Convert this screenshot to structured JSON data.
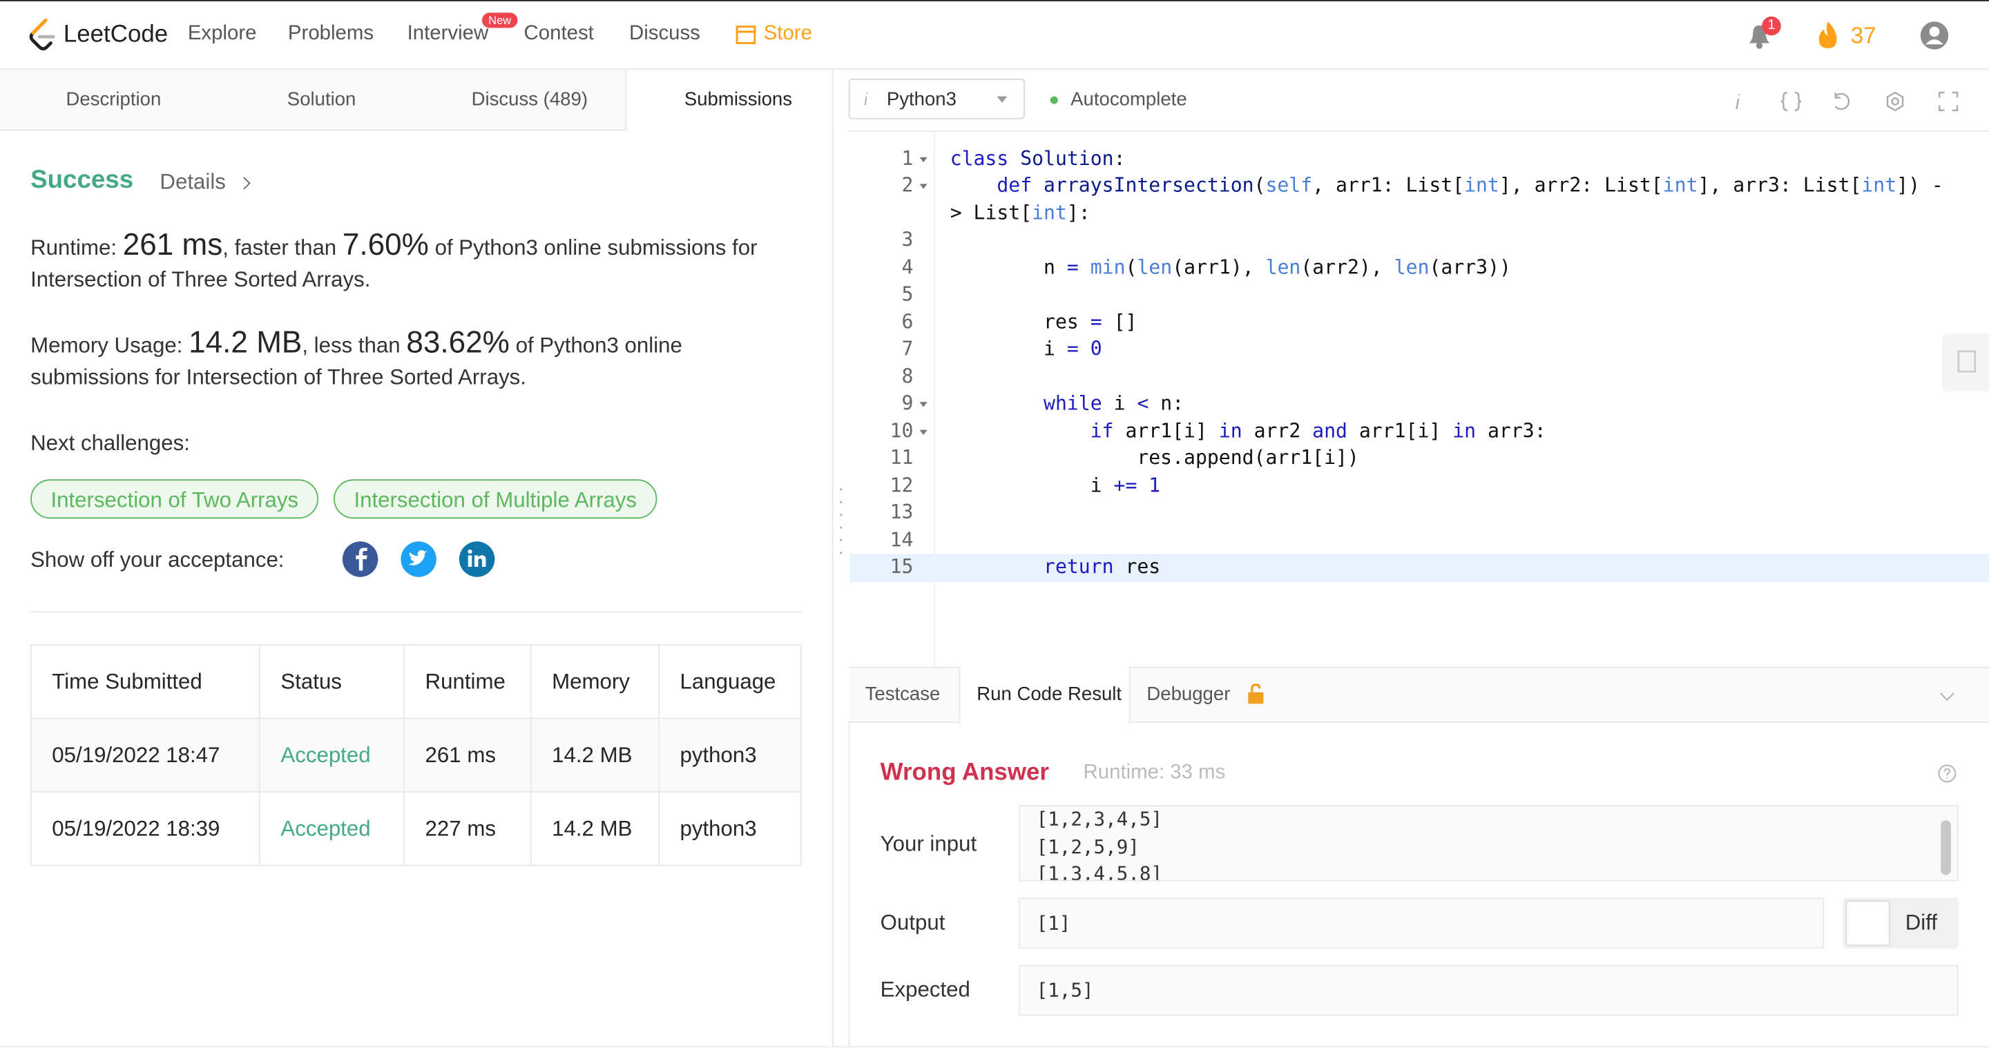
{
  "nav": {
    "logo": "LeetCode",
    "items": [
      "Explore",
      "Problems",
      "Interview",
      "Contest",
      "Discuss"
    ],
    "badge": "New",
    "store": "Store",
    "notifications": 1,
    "streak": 37
  },
  "tabs": [
    "Description",
    "Solution",
    "Discuss (489)",
    "Submissions"
  ],
  "result": {
    "status": "Success",
    "details": "Details",
    "runtime": {
      "label": "Runtime:",
      "value": "261 ms",
      "middle": ", faster than",
      "percent": "7.60%",
      "tail": "of Python3 online submissions for Intersection of Three Sorted Arrays."
    },
    "memory": {
      "label": "Memory Usage:",
      "value": "14.2 MB",
      "middle": ", less than",
      "percent": "83.62%",
      "tail": "of Python3 online submissions for Intersection of Three Sorted Arrays."
    }
  },
  "next_challenges": {
    "label": "Next challenges:",
    "items": [
      "Intersection of Two Arrays",
      "Intersection of Multiple Arrays"
    ]
  },
  "share_label": "Show off your acceptance:",
  "table": {
    "headers": [
      "Time Submitted",
      "Status",
      "Runtime",
      "Memory",
      "Language"
    ],
    "rows": [
      [
        "05/19/2022 18:47",
        "Accepted",
        "261 ms",
        "14.2 MB",
        "python3"
      ],
      [
        "05/19/2022 18:39",
        "Accepted",
        "227 ms",
        "14.2 MB",
        "python3"
      ]
    ]
  },
  "editor": {
    "language": "Python3",
    "autocomplete": "Autocomplete",
    "line_numbers": [
      1,
      2,
      3,
      4,
      5,
      6,
      7,
      8,
      9,
      10,
      11,
      12,
      13,
      14,
      15
    ],
    "lines": [
      {
        "line": 1,
        "text": "class Solution:"
      },
      {
        "line": 2,
        "text": "    def arraysIntersection(self, arr1: List[int], arr2: List[int], arr3: List[int]) -> List[int]:"
      },
      {
        "line": 4,
        "text": "        n = min(len(arr1), len(arr2), len(arr3))"
      },
      {
        "line": 6,
        "text": "        res = []"
      },
      {
        "line": 7,
        "text": "        i = 0"
      },
      {
        "line": 9,
        "text": "        while i < n:"
      },
      {
        "line": 10,
        "text": "            if arr1[i] in arr2 and arr1[i] in arr3:"
      },
      {
        "line": 11,
        "text": "                res.append(arr1[i])"
      },
      {
        "line": 12,
        "text": "            i += 1"
      },
      {
        "line": 15,
        "text": "        return res"
      }
    ]
  },
  "console": {
    "tabs": [
      "Testcase",
      "Run Code Result",
      "Debugger"
    ],
    "verdict": "Wrong Answer",
    "runtime": "Runtime: 33 ms",
    "input_label": "Your input",
    "input": [
      "[1,2,3,4,5]",
      "[1,2,5,9]",
      "[1,3,4,5,8]"
    ],
    "output_label": "Output",
    "output": "[1]",
    "diff": "Diff",
    "expected_label": "Expected",
    "expected": "[1,5]"
  }
}
